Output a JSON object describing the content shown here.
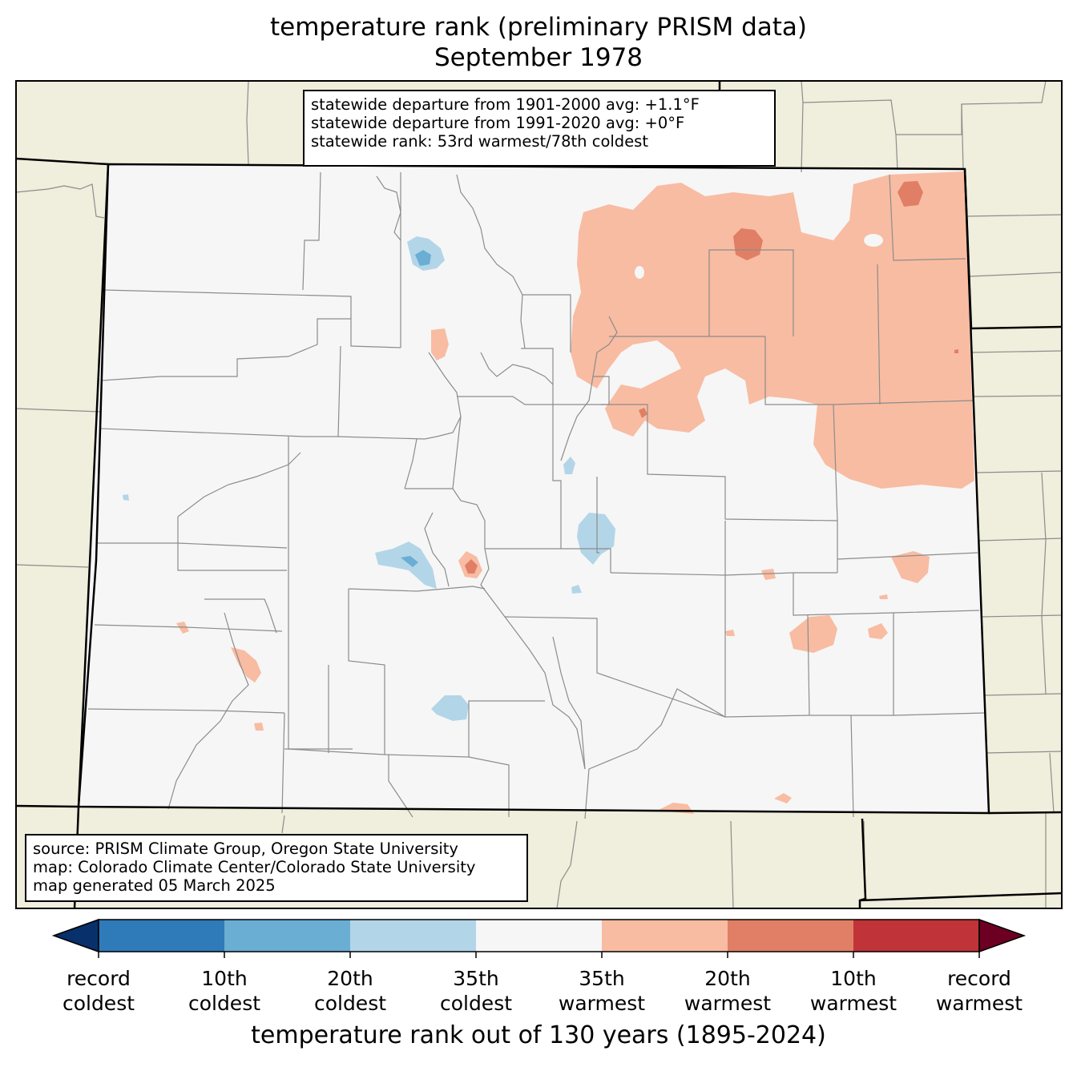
{
  "title": {
    "line1": "temperature rank (preliminary PRISM data)",
    "line2": "September 1978"
  },
  "stats_box": {
    "line1": "statewide departure from 1901-2000 avg: +1.1°F",
    "line2": "statewide departure from 1991-2020 avg: +0°F",
    "line3": "statewide rank: 53rd warmest/78th coldest"
  },
  "source_box": {
    "line1": "source: PRISM Climate Group, Oregon State University",
    "line2": "map: Colorado Climate Center/Colorado State University",
    "line3": "map generated 05 March 2025"
  },
  "colorbar": {
    "label": "temperature rank out of 130 years (1895-2024)",
    "colors": [
      "#08306b",
      "#2f7ab9",
      "#6aaed4",
      "#b3d5e8",
      "#f6f6f6",
      "#f8bca2",
      "#e07f65",
      "#c03338",
      "#6d0022"
    ],
    "ticks": [
      {
        "line1": "record",
        "line2": "coldest"
      },
      {
        "line1": "10th",
        "line2": "coldest"
      },
      {
        "line1": "20th",
        "line2": "coldest"
      },
      {
        "line1": "35th",
        "line2": "coldest"
      },
      {
        "line1": "35th",
        "line2": "warmest"
      },
      {
        "line1": "20th",
        "line2": "warmest"
      },
      {
        "line1": "10th",
        "line2": "warmest"
      },
      {
        "line1": "record",
        "line2": "warmest"
      }
    ]
  },
  "map_colors": {
    "land_outside": "#f0eedc",
    "state_fill": "#f6f6f6",
    "county_line": "#8c8c8c",
    "state_line": "#000000"
  }
}
